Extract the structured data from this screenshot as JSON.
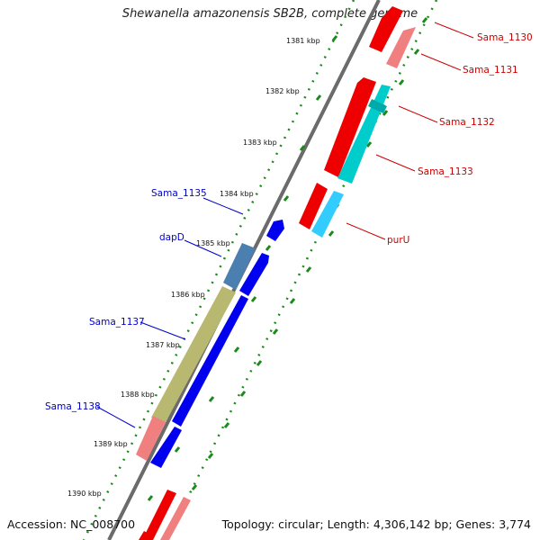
{
  "title": "Shewanella amazonensis SB2B, complete genome",
  "accession_label": "Accession: NC_008700",
  "summary_label": "Topology: circular; Length: 4,306,142 bp; Genes: 3,774",
  "ticks": [
    "1381 kbp",
    "1382 kbp",
    "1383 kbp",
    "1384 kbp",
    "1385 kbp",
    "1386 kbp",
    "1387 kbp",
    "1388 kbp",
    "1389 kbp",
    "1390 kbp"
  ],
  "gene_labels": [
    {
      "text": "Sama_1130",
      "color": "#cc0000"
    },
    {
      "text": "Sama_1131",
      "color": "#cc0000"
    },
    {
      "text": "Sama_1132",
      "color": "#cc0000"
    },
    {
      "text": "Sama_1133",
      "color": "#cc0000"
    },
    {
      "text": "purU",
      "color": "#cc0000"
    },
    {
      "text": "Sama_1135",
      "color": "#0000cc"
    },
    {
      "text": "dapD",
      "color": "#0000cc"
    },
    {
      "text": "Sama_1137",
      "color": "#0000cc"
    },
    {
      "text": "Sama_1138",
      "color": "#0000cc"
    }
  ],
  "colors": {
    "backbone": "#6b6b6b",
    "tick_green": "#1a8a1a",
    "cds_forward": "#ff0000",
    "cds_forward_light": "#f08080",
    "cds_reverse": "#0000ee",
    "cyan": "#00cccc",
    "light_blue": "#33ccff",
    "steel_blue": "#4a7fb0",
    "olive": "#b8b870"
  }
}
